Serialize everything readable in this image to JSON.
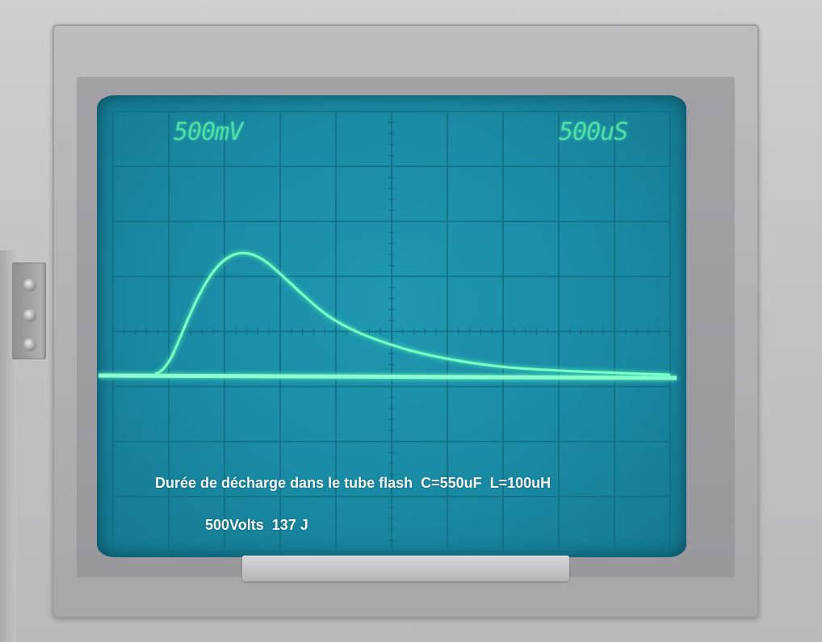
{
  "scope": {
    "volts_per_div": "500mV",
    "time_per_div": "500uS"
  },
  "annotation": {
    "line1": "Durée de décharge dans le tube flash  C=550uF  L=100uH",
    "line2": "500Volts  137 J"
  },
  "colors": {
    "screen": "#1a8aa3",
    "trace": "#6dffc0",
    "graticule": "#0f6f84"
  }
}
